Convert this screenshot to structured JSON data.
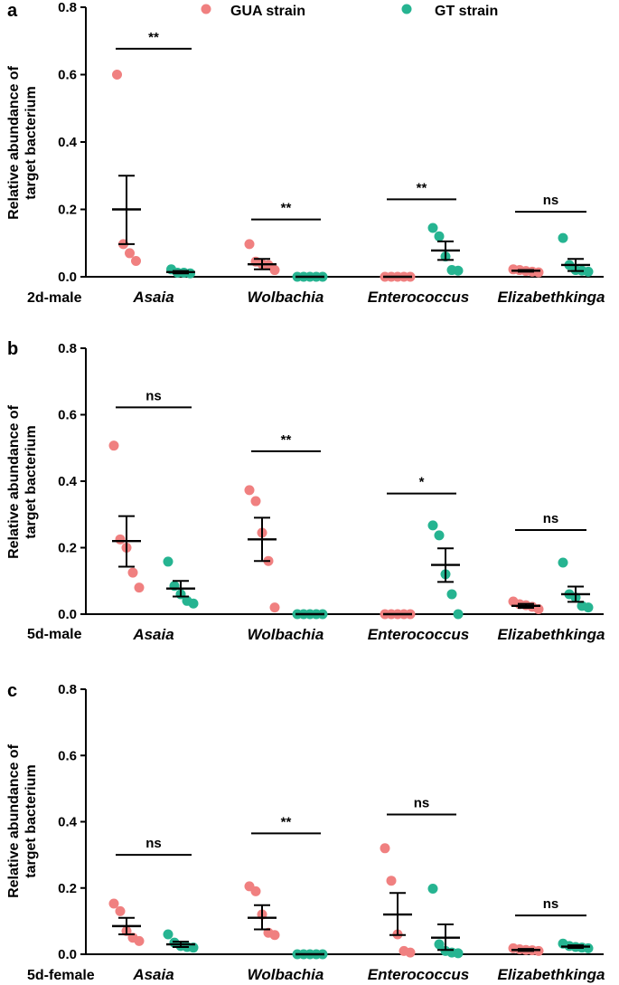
{
  "colors": {
    "gua": "#f08080",
    "gt": "#26b491",
    "axis": "#000000"
  },
  "legend": [
    {
      "name": "GUA strain",
      "color": "#f08080"
    },
    {
      "name": "GT strain",
      "color": "#26b491"
    }
  ],
  "chart_data": [
    {
      "type": "scatter",
      "panel": "a",
      "group_label": "2d-male",
      "ylabel_line1": "Relative abundance of",
      "ylabel_line2": "target bacterium",
      "ylim": [
        0,
        0.8
      ],
      "yticks": [
        "0.0",
        "0.2",
        "0.4",
        "0.6",
        "0.8"
      ],
      "categories": [
        {
          "name": "Asaia",
          "sig": "**",
          "sig_y": 0.677,
          "gua": {
            "points": [
              0.6,
              0.097,
              0.07,
              0.047
            ],
            "mean": 0.2,
            "sem_low": 0.097,
            "sem_high": 0.3
          },
          "gt": {
            "points": [
              0.022,
              0.012,
              0.012,
              0.01
            ],
            "mean": 0.014,
            "sem_low": 0.01,
            "sem_high": 0.017
          }
        },
        {
          "name": "Wolbachia",
          "sig": "**",
          "sig_y": 0.17,
          "gua": {
            "points": [
              0.097,
              0.045,
              0.038,
              0.035,
              0.02
            ],
            "mean": 0.037,
            "sem_low": 0.022,
            "sem_high": 0.053
          },
          "gt": {
            "points": [
              0,
              0,
              0,
              0,
              0
            ],
            "mean": 0,
            "sem_low": 0,
            "sem_high": 0
          }
        },
        {
          "name": "Enterococcus",
          "sig": "**",
          "sig_y": 0.23,
          "gua": {
            "points": [
              0,
              0,
              0,
              0,
              0
            ],
            "mean": 0,
            "sem_low": 0,
            "sem_high": 0
          },
          "gt": {
            "points": [
              0.145,
              0.12,
              0.06,
              0.02,
              0.018
            ],
            "mean": 0.078,
            "sem_low": 0.05,
            "sem_high": 0.105
          }
        },
        {
          "name": "Elizabethkinga",
          "sig": "ns",
          "sig_y": 0.193,
          "gua": {
            "points": [
              0.022,
              0.02,
              0.017,
              0.015,
              0.013
            ],
            "mean": 0.018,
            "sem_low": 0.015,
            "sem_high": 0.02
          },
          "gt": {
            "points": [
              0.115,
              0.035,
              0.02,
              0.018,
              0.015
            ],
            "mean": 0.035,
            "sem_low": 0.017,
            "sem_high": 0.053
          }
        }
      ]
    },
    {
      "type": "scatter",
      "panel": "b",
      "group_label": "5d-male",
      "ylabel_line1": "Relative abundance of",
      "ylabel_line2": "target bacterium",
      "ylim": [
        0,
        0.8
      ],
      "yticks": [
        "0.0",
        "0.2",
        "0.4",
        "0.6",
        "0.8"
      ],
      "categories": [
        {
          "name": "Asaia",
          "sig": "ns",
          "sig_y": 0.622,
          "gua": {
            "points": [
              0.507,
              0.225,
              0.2,
              0.125,
              0.08
            ],
            "mean": 0.22,
            "sem_low": 0.143,
            "sem_high": 0.295
          },
          "gt": {
            "points": [
              0.158,
              0.085,
              0.06,
              0.04,
              0.032
            ],
            "mean": 0.077,
            "sem_low": 0.053,
            "sem_high": 0.1
          }
        },
        {
          "name": "Wolbachia",
          "sig": "**",
          "sig_y": 0.49,
          "gua": {
            "points": [
              0.373,
              0.34,
              0.245,
              0.16,
              0.02
            ],
            "mean": 0.225,
            "sem_low": 0.16,
            "sem_high": 0.29
          },
          "gt": {
            "points": [
              0,
              0,
              0,
              0,
              0
            ],
            "mean": 0,
            "sem_low": 0,
            "sem_high": 0
          }
        },
        {
          "name": "Enterococcus",
          "sig": "*",
          "sig_y": 0.363,
          "gua": {
            "points": [
              0,
              0,
              0,
              0,
              0
            ],
            "mean": 0,
            "sem_low": 0,
            "sem_high": 0
          },
          "gt": {
            "points": [
              0.267,
              0.237,
              0.12,
              0.06,
              0.0
            ],
            "mean": 0.148,
            "sem_low": 0.097,
            "sem_high": 0.198
          }
        },
        {
          "name": "Elizabethkinga",
          "sig": "ns",
          "sig_y": 0.253,
          "gua": {
            "points": [
              0.038,
              0.03,
              0.027,
              0.022,
              0.015
            ],
            "mean": 0.025,
            "sem_low": 0.019,
            "sem_high": 0.031
          },
          "gt": {
            "points": [
              0.155,
              0.06,
              0.05,
              0.025,
              0.02
            ],
            "mean": 0.06,
            "sem_low": 0.037,
            "sem_high": 0.083
          }
        }
      ]
    },
    {
      "type": "scatter",
      "panel": "c",
      "group_label": "5d-female",
      "ylabel_line1": "Relative abundance of",
      "ylabel_line2": "target bacterium",
      "ylim": [
        0,
        0.8
      ],
      "yticks": [
        "0.0",
        "0.2",
        "0.4",
        "0.6",
        "0.8"
      ],
      "categories": [
        {
          "name": "Asaia",
          "sig": "ns",
          "sig_y": 0.3,
          "gua": {
            "points": [
              0.153,
              0.13,
              0.07,
              0.05,
              0.04
            ],
            "mean": 0.085,
            "sem_low": 0.06,
            "sem_high": 0.11
          },
          "gt": {
            "points": [
              0.06,
              0.035,
              0.025,
              0.022,
              0.02
            ],
            "mean": 0.03,
            "sem_low": 0.022,
            "sem_high": 0.038
          }
        },
        {
          "name": "Wolbachia",
          "sig": "**",
          "sig_y": 0.365,
          "gua": {
            "points": [
              0.205,
              0.19,
              0.12,
              0.065,
              0.058
            ],
            "mean": 0.11,
            "sem_low": 0.075,
            "sem_high": 0.148
          },
          "gt": {
            "points": [
              0,
              0,
              0,
              0,
              0
            ],
            "mean": 0,
            "sem_low": 0,
            "sem_high": 0
          }
        },
        {
          "name": "Enterococcus",
          "sig": "ns",
          "sig_y": 0.422,
          "gua": {
            "points": [
              0.32,
              0.222,
              0.06,
              0.01,
              0.005
            ],
            "mean": 0.12,
            "sem_low": 0.058,
            "sem_high": 0.185
          },
          "gt": {
            "points": [
              0.198,
              0.03,
              0.01,
              0.005,
              0.003
            ],
            "mean": 0.05,
            "sem_low": 0.013,
            "sem_high": 0.09
          }
        },
        {
          "name": "Elizabethkinga",
          "sig": "ns",
          "sig_y": 0.117,
          "gua": {
            "points": [
              0.018,
              0.015,
              0.013,
              0.012,
              0.01
            ],
            "mean": 0.013,
            "sem_low": 0.01,
            "sem_high": 0.016
          },
          "gt": {
            "points": [
              0.032,
              0.025,
              0.022,
              0.02,
              0.018
            ],
            "mean": 0.023,
            "sem_low": 0.019,
            "sem_high": 0.027
          }
        }
      ]
    }
  ]
}
